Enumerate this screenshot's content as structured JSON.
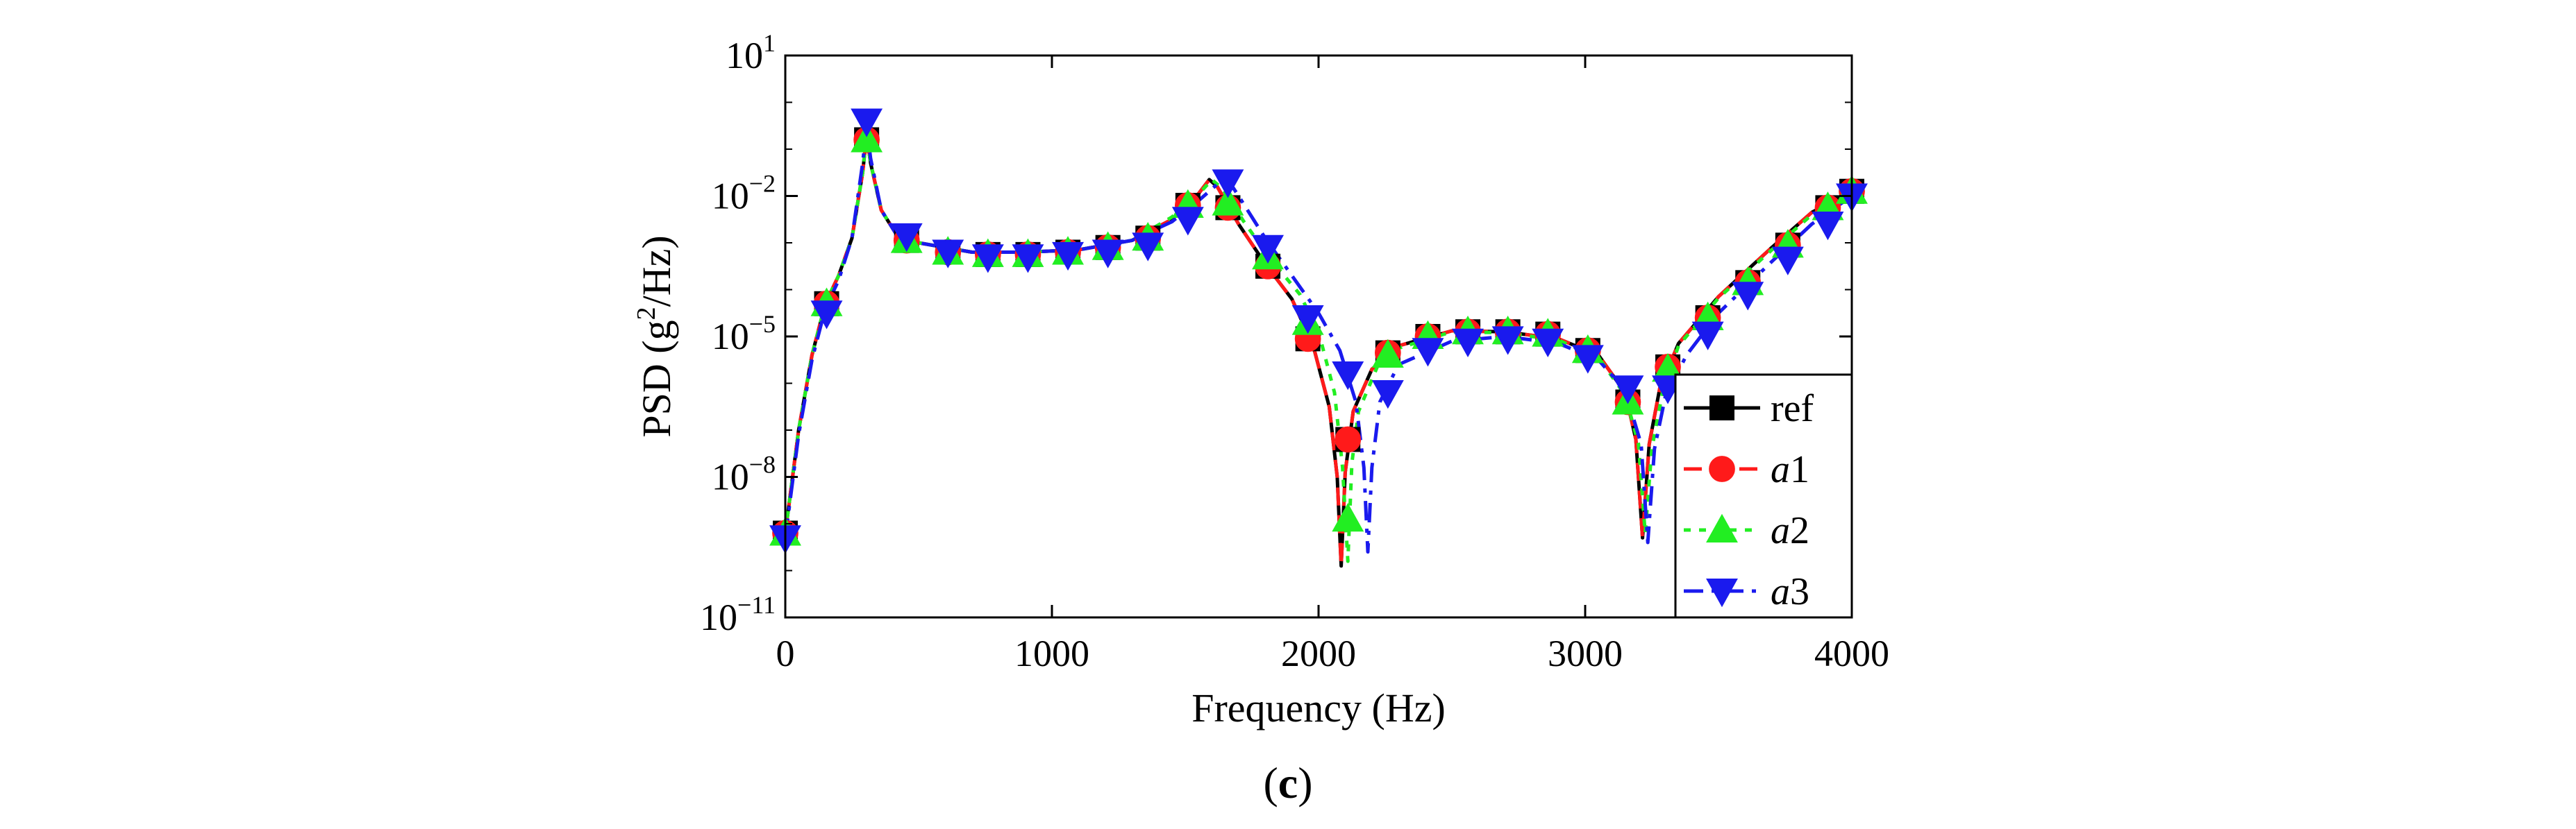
{
  "chart_data": {
    "type": "line",
    "title": "",
    "xlabel": "Frequency (Hz)",
    "ylabel": {
      "prefix": "PSD (g",
      "sup": "2",
      "suffix": "/Hz)"
    },
    "xlim": [
      0,
      4000
    ],
    "ylim_log10": [
      -11,
      1
    ],
    "yscale": "log",
    "grid": false,
    "legend_position": "lower-right",
    "panel_label": {
      "open": "(",
      "letter": "c",
      "close": ")"
    },
    "x_ticks": [
      {
        "value": 0,
        "label": "0"
      },
      {
        "value": 1000,
        "label": "1000"
      },
      {
        "value": 2000,
        "label": "2000"
      },
      {
        "value": 3000,
        "label": "3000"
      },
      {
        "value": 4000,
        "label": "4000"
      }
    ],
    "y_ticks": [
      {
        "log10": -11,
        "base": "10",
        "exp": "−11"
      },
      {
        "log10": -8,
        "base": "10",
        "exp": "−8"
      },
      {
        "log10": -5,
        "base": "10",
        "exp": "−5"
      },
      {
        "log10": -2,
        "base": "10",
        "exp": "−2"
      },
      {
        "log10": 1,
        "base": "10",
        "exp": "1"
      }
    ],
    "series": [
      {
        "name": "ref",
        "italic_prefix": "",
        "suffix": "ref",
        "color": "#000000",
        "marker": "square",
        "dash": "",
        "points": [
          [
            0,
            -9.2
          ],
          [
            50,
            -7.0
          ],
          [
            100,
            -5.4
          ],
          [
            150,
            -4.3
          ],
          [
            200,
            -3.7
          ],
          [
            250,
            -2.9
          ],
          [
            290,
            -1.5
          ],
          [
            305,
            -0.7
          ],
          [
            320,
            -1.3
          ],
          [
            360,
            -2.3
          ],
          [
            420,
            -2.85
          ],
          [
            500,
            -3.0
          ],
          [
            700,
            -3.2
          ],
          [
            900,
            -3.2
          ],
          [
            1100,
            -3.15
          ],
          [
            1300,
            -2.95
          ],
          [
            1450,
            -2.5
          ],
          [
            1550,
            -1.95
          ],
          [
            1590,
            -1.65
          ],
          [
            1620,
            -1.8
          ],
          [
            1700,
            -2.6
          ],
          [
            1800,
            -3.45
          ],
          [
            1900,
            -4.2
          ],
          [
            1980,
            -5.2
          ],
          [
            2040,
            -6.5
          ],
          [
            2070,
            -8.0
          ],
          [
            2085,
            -9.9
          ],
          [
            2100,
            -7.9
          ],
          [
            2130,
            -6.6
          ],
          [
            2200,
            -5.7
          ],
          [
            2300,
            -5.2
          ],
          [
            2500,
            -4.88
          ],
          [
            2700,
            -4.9
          ],
          [
            2900,
            -5.05
          ],
          [
            3050,
            -5.4
          ],
          [
            3150,
            -6.2
          ],
          [
            3190,
            -7.2
          ],
          [
            3215,
            -9.3
          ],
          [
            3240,
            -7.3
          ],
          [
            3280,
            -6.1
          ],
          [
            3350,
            -5.15
          ],
          [
            3500,
            -4.15
          ],
          [
            3700,
            -3.1
          ],
          [
            3850,
            -2.35
          ],
          [
            4000,
            -1.9
          ]
        ]
      },
      {
        "name": "a1",
        "italic_prefix": "a",
        "suffix": "1",
        "color": "#ff1a1a",
        "marker": "circle",
        "dash": "26 14",
        "points": [
          [
            0,
            -9.2
          ],
          [
            50,
            -7.0
          ],
          [
            100,
            -5.4
          ],
          [
            150,
            -4.3
          ],
          [
            200,
            -3.7
          ],
          [
            250,
            -2.9
          ],
          [
            290,
            -1.5
          ],
          [
            305,
            -0.7
          ],
          [
            320,
            -1.3
          ],
          [
            360,
            -2.3
          ],
          [
            420,
            -2.85
          ],
          [
            500,
            -3.0
          ],
          [
            700,
            -3.2
          ],
          [
            900,
            -3.2
          ],
          [
            1100,
            -3.15
          ],
          [
            1300,
            -2.95
          ],
          [
            1450,
            -2.5
          ],
          [
            1550,
            -1.95
          ],
          [
            1590,
            -1.65
          ],
          [
            1620,
            -1.8
          ],
          [
            1700,
            -2.6
          ],
          [
            1800,
            -3.45
          ],
          [
            1900,
            -4.2
          ],
          [
            1980,
            -5.2
          ],
          [
            2040,
            -6.5
          ],
          [
            2070,
            -8.0
          ],
          [
            2085,
            -9.9
          ],
          [
            2100,
            -7.9
          ],
          [
            2130,
            -6.6
          ],
          [
            2200,
            -5.7
          ],
          [
            2300,
            -5.2
          ],
          [
            2500,
            -4.88
          ],
          [
            2700,
            -4.9
          ],
          [
            2900,
            -5.05
          ],
          [
            3050,
            -5.4
          ],
          [
            3150,
            -6.2
          ],
          [
            3190,
            -7.2
          ],
          [
            3215,
            -9.3
          ],
          [
            3240,
            -7.3
          ],
          [
            3280,
            -6.1
          ],
          [
            3350,
            -5.15
          ],
          [
            3500,
            -4.15
          ],
          [
            3700,
            -3.1
          ],
          [
            3850,
            -2.35
          ],
          [
            4000,
            -1.9
          ]
        ]
      },
      {
        "name": "a2",
        "italic_prefix": "a",
        "suffix": "2",
        "color": "#22ee22",
        "marker": "triangle-up",
        "dash": "10 12",
        "points": [
          [
            0,
            -9.2
          ],
          [
            50,
            -7.0
          ],
          [
            100,
            -5.4
          ],
          [
            150,
            -4.3
          ],
          [
            200,
            -3.7
          ],
          [
            250,
            -2.9
          ],
          [
            290,
            -1.5
          ],
          [
            305,
            -0.7
          ],
          [
            320,
            -1.3
          ],
          [
            360,
            -2.3
          ],
          [
            420,
            -2.85
          ],
          [
            500,
            -3.0
          ],
          [
            700,
            -3.2
          ],
          [
            900,
            -3.2
          ],
          [
            1100,
            -3.15
          ],
          [
            1300,
            -2.95
          ],
          [
            1450,
            -2.45
          ],
          [
            1560,
            -1.9
          ],
          [
            1600,
            -1.65
          ],
          [
            1640,
            -1.85
          ],
          [
            1720,
            -2.55
          ],
          [
            1820,
            -3.35
          ],
          [
            1930,
            -4.1
          ],
          [
            2000,
            -4.9
          ],
          [
            2060,
            -6.2
          ],
          [
            2090,
            -7.8
          ],
          [
            2110,
            -9.8
          ],
          [
            2125,
            -7.7
          ],
          [
            2150,
            -6.6
          ],
          [
            2220,
            -5.65
          ],
          [
            2300,
            -5.25
          ],
          [
            2500,
            -4.9
          ],
          [
            2700,
            -4.92
          ],
          [
            2900,
            -5.08
          ],
          [
            3050,
            -5.45
          ],
          [
            3150,
            -6.25
          ],
          [
            3200,
            -7.3
          ],
          [
            3225,
            -9.2
          ],
          [
            3250,
            -7.4
          ],
          [
            3290,
            -6.2
          ],
          [
            3350,
            -5.2
          ],
          [
            3500,
            -4.18
          ],
          [
            3700,
            -3.15
          ],
          [
            3850,
            -2.4
          ],
          [
            4000,
            -1.95
          ]
        ]
      },
      {
        "name": "a3",
        "italic_prefix": "a",
        "suffix": "3",
        "color": "#1a1aee",
        "marker": "triangle-down",
        "dash": "28 12 6 12",
        "points": [
          [
            0,
            -9.3
          ],
          [
            50,
            -7.1
          ],
          [
            100,
            -5.5
          ],
          [
            150,
            -4.4
          ],
          [
            200,
            -3.8
          ],
          [
            250,
            -2.9
          ],
          [
            290,
            -1.3
          ],
          [
            305,
            -0.5
          ],
          [
            320,
            -1.2
          ],
          [
            360,
            -2.3
          ],
          [
            420,
            -2.85
          ],
          [
            500,
            -3.0
          ],
          [
            700,
            -3.2
          ],
          [
            900,
            -3.2
          ],
          [
            1100,
            -3.15
          ],
          [
            1300,
            -2.95
          ],
          [
            1450,
            -2.55
          ],
          [
            1550,
            -2.1
          ],
          [
            1620,
            -1.75
          ],
          [
            1660,
            -1.65
          ],
          [
            1700,
            -2.0
          ],
          [
            1800,
            -2.9
          ],
          [
            1900,
            -3.7
          ],
          [
            2000,
            -4.5
          ],
          [
            2080,
            -5.3
          ],
          [
            2140,
            -6.4
          ],
          [
            2170,
            -7.8
          ],
          [
            2185,
            -9.6
          ],
          [
            2200,
            -7.8
          ],
          [
            2230,
            -6.4
          ],
          [
            2300,
            -5.6
          ],
          [
            2500,
            -5.1
          ],
          [
            2700,
            -5.0
          ],
          [
            2900,
            -5.15
          ],
          [
            3050,
            -5.5
          ],
          [
            3150,
            -6.15
          ],
          [
            3210,
            -7.3
          ],
          [
            3235,
            -9.4
          ],
          [
            3260,
            -7.4
          ],
          [
            3300,
            -6.3
          ],
          [
            3380,
            -5.4
          ],
          [
            3500,
            -4.5
          ],
          [
            3700,
            -3.4
          ],
          [
            3850,
            -2.6
          ],
          [
            4000,
            -2.0
          ]
        ]
      }
    ],
    "markers": {
      "ref": [
        [
          0,
          -9.2
        ],
        [
          155,
          -4.3
        ],
        [
          305,
          -0.8
        ],
        [
          455,
          -2.95
        ],
        [
          610,
          -3.2
        ],
        [
          760,
          -3.25
        ],
        [
          910,
          -3.25
        ],
        [
          1060,
          -3.2
        ],
        [
          1210,
          -3.1
        ],
        [
          1360,
          -2.9
        ],
        [
          1510,
          -2.2
        ],
        [
          1660,
          -2.25
        ],
        [
          1810,
          -3.5
        ],
        [
          1960,
          -5.05
        ],
        [
          2110,
          -7.2
        ],
        [
          2260,
          -5.35
        ],
        [
          2410,
          -5.0
        ],
        [
          2560,
          -4.9
        ],
        [
          2710,
          -4.9
        ],
        [
          2860,
          -4.95
        ],
        [
          3010,
          -5.3
        ],
        [
          3160,
          -6.4
        ],
        [
          3310,
          -5.65
        ],
        [
          3460,
          -4.6
        ],
        [
          3610,
          -3.85
        ],
        [
          3760,
          -3.05
        ],
        [
          3910,
          -2.25
        ],
        [
          4000,
          -1.9
        ]
      ],
      "a1": [
        [
          0,
          -9.2
        ],
        [
          155,
          -4.3
        ],
        [
          305,
          -0.8
        ],
        [
          455,
          -2.95
        ],
        [
          610,
          -3.2
        ],
        [
          760,
          -3.25
        ],
        [
          910,
          -3.25
        ],
        [
          1060,
          -3.2
        ],
        [
          1210,
          -3.1
        ],
        [
          1360,
          -2.9
        ],
        [
          1510,
          -2.2
        ],
        [
          1660,
          -2.25
        ],
        [
          1810,
          -3.5
        ],
        [
          1960,
          -5.05
        ],
        [
          2110,
          -7.2
        ],
        [
          2260,
          -5.35
        ],
        [
          2410,
          -5.0
        ],
        [
          2560,
          -4.9
        ],
        [
          2710,
          -4.9
        ],
        [
          2860,
          -4.95
        ],
        [
          3010,
          -5.3
        ],
        [
          3160,
          -6.4
        ],
        [
          3310,
          -5.65
        ],
        [
          3460,
          -4.6
        ],
        [
          3610,
          -3.85
        ],
        [
          3760,
          -3.05
        ],
        [
          3910,
          -2.25
        ],
        [
          4000,
          -1.9
        ]
      ],
      "a2": [
        [
          0,
          -9.2
        ],
        [
          155,
          -4.3
        ],
        [
          305,
          -0.8
        ],
        [
          455,
          -2.95
        ],
        [
          610,
          -3.2
        ],
        [
          760,
          -3.25
        ],
        [
          910,
          -3.25
        ],
        [
          1060,
          -3.2
        ],
        [
          1210,
          -3.1
        ],
        [
          1360,
          -2.9
        ],
        [
          1510,
          -2.2
        ],
        [
          1660,
          -2.15
        ],
        [
          1810,
          -3.3
        ],
        [
          1960,
          -4.7
        ],
        [
          2110,
          -8.9
        ],
        [
          2260,
          -5.4
        ],
        [
          2410,
          -5.0
        ],
        [
          2560,
          -4.9
        ],
        [
          2710,
          -4.9
        ],
        [
          2860,
          -4.95
        ],
        [
          3010,
          -5.3
        ],
        [
          3160,
          -6.4
        ],
        [
          3310,
          -5.7
        ],
        [
          3460,
          -4.6
        ],
        [
          3610,
          -3.85
        ],
        [
          3760,
          -3.05
        ],
        [
          3910,
          -2.25
        ],
        [
          4000,
          -1.9
        ]
      ],
      "a3": [
        [
          0,
          -9.3
        ],
        [
          155,
          -4.5
        ],
        [
          305,
          -0.4
        ],
        [
          455,
          -2.85
        ],
        [
          610,
          -3.2
        ],
        [
          760,
          -3.3
        ],
        [
          910,
          -3.3
        ],
        [
          1060,
          -3.25
        ],
        [
          1210,
          -3.2
        ],
        [
          1360,
          -3.05
        ],
        [
          1510,
          -2.5
        ],
        [
          1660,
          -1.7
        ],
        [
          1810,
          -3.1
        ],
        [
          1960,
          -4.6
        ],
        [
          2110,
          -5.8
        ],
        [
          2260,
          -6.2
        ],
        [
          2410,
          -5.3
        ],
        [
          2560,
          -5.1
        ],
        [
          2710,
          -5.05
        ],
        [
          2860,
          -5.1
        ],
        [
          3010,
          -5.45
        ],
        [
          3160,
          -6.1
        ],
        [
          3310,
          -6.1
        ],
        [
          3460,
          -4.95
        ],
        [
          3610,
          -4.1
        ],
        [
          3760,
          -3.35
        ],
        [
          3910,
          -2.6
        ],
        [
          4000,
          -2.0
        ]
      ]
    }
  }
}
